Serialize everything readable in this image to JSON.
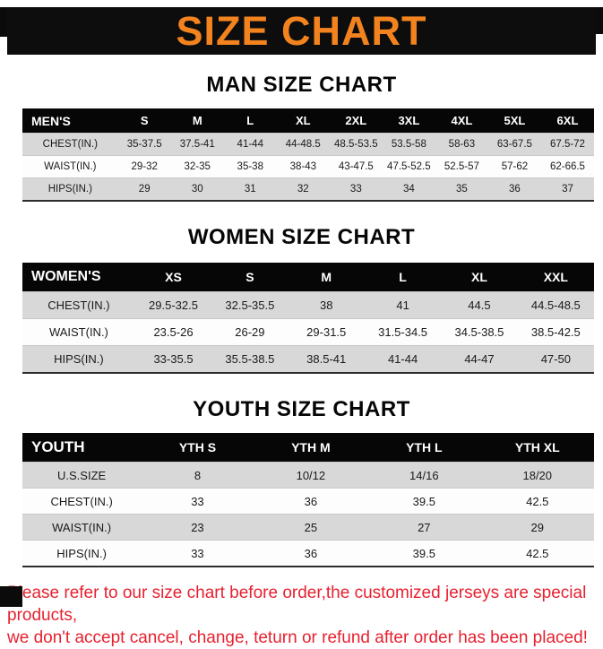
{
  "page": {
    "title": "SIZE CHART"
  },
  "colors": {
    "banner_bg": "#0d0d0d",
    "title_orange": "#f2831e",
    "table_header_bg": "#060606",
    "row_stripe_gray": "#d8d8d8",
    "footer_red": "#e62130"
  },
  "sections": [
    {
      "heading": "MAN SIZE CHART",
      "table": {
        "header": [
          "MEN'S",
          "S",
          "M",
          "L",
          "XL",
          "2XL",
          "3XL",
          "4XL",
          "5XL",
          "6XL"
        ],
        "rows": [
          [
            "CHEST(IN.)",
            "35-37.5",
            "37.5-41",
            "41-44",
            "44-48.5",
            "48.5-53.5",
            "53.5-58",
            "58-63",
            "63-67.5",
            "67.5-72"
          ],
          [
            "WAIST(IN.)",
            "29-32",
            "32-35",
            "35-38",
            "38-43",
            "43-47.5",
            "47.5-52.5",
            "52.5-57",
            "57-62",
            "62-66.5"
          ],
          [
            "HIPS(IN.)",
            "29",
            "30",
            "31",
            "32",
            "33",
            "34",
            "35",
            "36",
            "37"
          ]
        ]
      }
    },
    {
      "heading": "WOMEN SIZE CHART",
      "table": {
        "header": [
          "WOMEN'S",
          "XS",
          "S",
          "M",
          "L",
          "XL",
          "XXL"
        ],
        "rows": [
          [
            "CHEST(IN.)",
            "29.5-32.5",
            "32.5-35.5",
            "38",
            "41",
            "44.5",
            "44.5-48.5"
          ],
          [
            "WAIST(IN.)",
            "23.5-26",
            "26-29",
            "29-31.5",
            "31.5-34.5",
            "34.5-38.5",
            "38.5-42.5"
          ],
          [
            "HIPS(IN.)",
            "33-35.5",
            "35.5-38.5",
            "38.5-41",
            "41-44",
            "44-47",
            "47-50"
          ]
        ]
      }
    },
    {
      "heading": "YOUTH SIZE CHART",
      "table": {
        "header": [
          "YOUTH",
          "YTH S",
          "YTH M",
          "YTH L",
          "YTH XL"
        ],
        "rows": [
          [
            "U.S.SIZE",
            "8",
            "10/12",
            "14/16",
            "18/20"
          ],
          [
            "CHEST(IN.)",
            "33",
            "36",
            "39.5",
            "42.5"
          ],
          [
            "WAIST(IN.)",
            "23",
            "25",
            "27",
            "29"
          ],
          [
            "HIPS(IN.)",
            "33",
            "36",
            "39.5",
            "42.5"
          ]
        ]
      }
    }
  ],
  "footer": {
    "line1": "Please refer to our size chart before order,the customized jerseys are special products,",
    "line2": "we don't accept cancel, change, teturn or refund after order has been placed!"
  }
}
